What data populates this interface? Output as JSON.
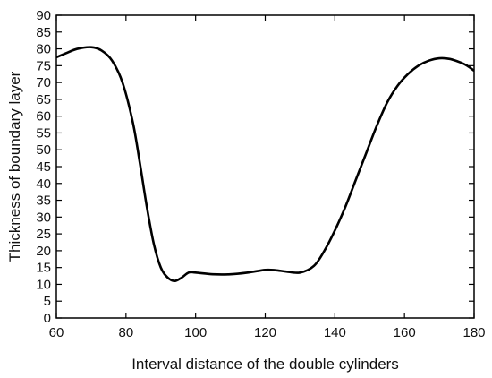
{
  "chart_data": {
    "type": "line",
    "title": "",
    "xlabel": "Interval distance of the double cylinders",
    "ylabel": "Thickness of boundary layer",
    "xlim": [
      60,
      180
    ],
    "ylim": [
      0,
      90
    ],
    "xticks": [
      60,
      80,
      100,
      120,
      140,
      160,
      180
    ],
    "yticks": [
      0,
      5,
      10,
      15,
      20,
      25,
      30,
      35,
      40,
      45,
      50,
      55,
      60,
      65,
      70,
      75,
      80,
      85,
      90
    ],
    "grid": false,
    "legend": "none",
    "series": [
      {
        "color": "#000000",
        "x": [
          60,
          63,
          66,
          70,
          73,
          76,
          79,
          82,
          84,
          86,
          88,
          90,
          92,
          94,
          96,
          98,
          100,
          105,
          110,
          115,
          120,
          123,
          126,
          130,
          134,
          137,
          140,
          143,
          146,
          149,
          152,
          155,
          158,
          161,
          164,
          167,
          170,
          173,
          176,
          178,
          180
        ],
        "y": [
          77.5,
          78.8,
          80,
          80.5,
          79.5,
          76.5,
          70,
          58,
          46,
          33,
          22,
          15,
          12,
          11,
          12,
          13.5,
          13.5,
          13,
          13,
          13.5,
          14.3,
          14.2,
          13.8,
          13.5,
          15.5,
          20,
          26,
          33,
          41,
          49,
          57,
          64,
          69,
          72.5,
          75,
          76.5,
          77.2,
          77,
          76,
          75,
          73.5
        ]
      }
    ]
  }
}
